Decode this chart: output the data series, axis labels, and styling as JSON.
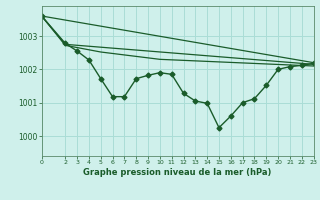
{
  "bg_color": "#cff0eb",
  "grid_color": "#aaddd6",
  "line_color": "#1a5c2a",
  "title": "Graphe pression niveau de la mer (hPa)",
  "ylabel_ticks": [
    1000,
    1001,
    1002,
    1003
  ],
  "xlim": [
    0,
    23
  ],
  "ylim": [
    999.4,
    1003.9
  ],
  "xticks": [
    0,
    2,
    3,
    4,
    5,
    6,
    7,
    8,
    9,
    10,
    11,
    12,
    13,
    14,
    15,
    16,
    17,
    18,
    19,
    20,
    21,
    22,
    23
  ],
  "series": [
    {
      "x": [
        0,
        23
      ],
      "y": [
        1003.6,
        1002.2
      ],
      "marker": "None",
      "markersize": 0,
      "linewidth": 0.9,
      "linestyle": "-"
    },
    {
      "x": [
        0,
        2,
        23
      ],
      "y": [
        1003.6,
        1002.75,
        1002.15
      ],
      "marker": "None",
      "markersize": 0,
      "linewidth": 0.9,
      "linestyle": "-"
    },
    {
      "x": [
        0,
        2,
        5,
        10,
        23
      ],
      "y": [
        1003.6,
        1002.72,
        1002.52,
        1002.3,
        1002.1
      ],
      "marker": "None",
      "markersize": 0,
      "linewidth": 0.9,
      "linestyle": "-"
    },
    {
      "x": [
        0,
        2,
        3,
        4,
        5,
        6,
        7,
        8,
        9,
        10,
        11,
        12,
        13,
        14,
        15,
        16,
        17,
        18,
        19,
        20,
        21,
        22,
        23
      ],
      "y": [
        1003.6,
        1002.78,
        1002.55,
        1002.28,
        1001.72,
        1001.18,
        1001.18,
        1001.72,
        1001.82,
        1001.9,
        1001.85,
        1001.28,
        1001.05,
        1000.98,
        1000.25,
        1000.6,
        1001.0,
        1001.12,
        1001.52,
        1002.0,
        1002.08,
        1002.12,
        1002.18
      ],
      "marker": "D",
      "markersize": 2.5,
      "linewidth": 1.0,
      "linestyle": "-"
    }
  ]
}
